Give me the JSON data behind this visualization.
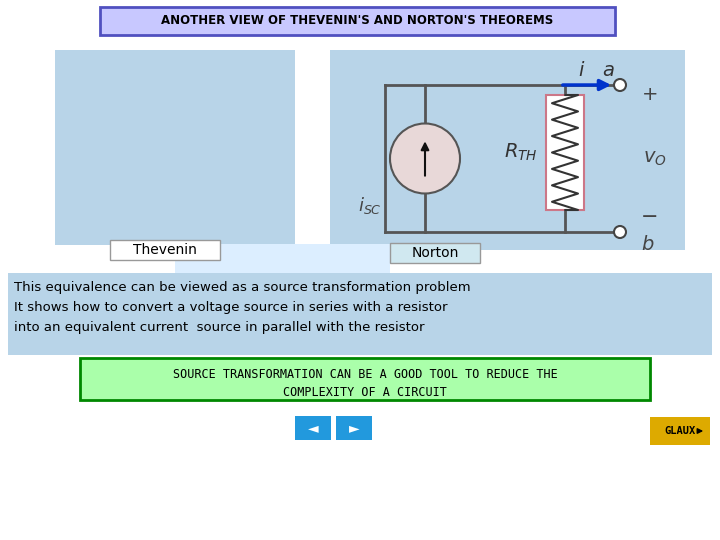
{
  "title": "ANOTHER VIEW OF THEVENIN'S AND NORTON'S THEOREMS",
  "bg_color": "#ffffff",
  "title_box_fill": "#c8c8ff",
  "title_box_border": "#5050c0",
  "title_text_color": "#000000",
  "light_blue_dark": "#b8d4e8",
  "light_blue_light": "#dceeff",
  "thevenin_label": "Thevenin",
  "norton_label": "Norton",
  "body_text_line1": "This equivalence can be viewed as a source transformation problem",
  "body_text_line2": "It shows how to convert a voltage source in series with a resistor",
  "body_text_line3": "into an equivalent current  source in parallel with the resistor",
  "source_box_text1": "SOURCE TRANSFORMATION CAN BE A GOOD TOOL TO REDUCE THE",
  "source_box_text2": "COMPLEXITY OF A CIRCUIT",
  "source_box_color": "#aaffaa",
  "source_box_border": "#008800",
  "nav_blue": "#2299dd",
  "glaux_box_color": "#ddaa00",
  "glaux_text": "GLAUX"
}
